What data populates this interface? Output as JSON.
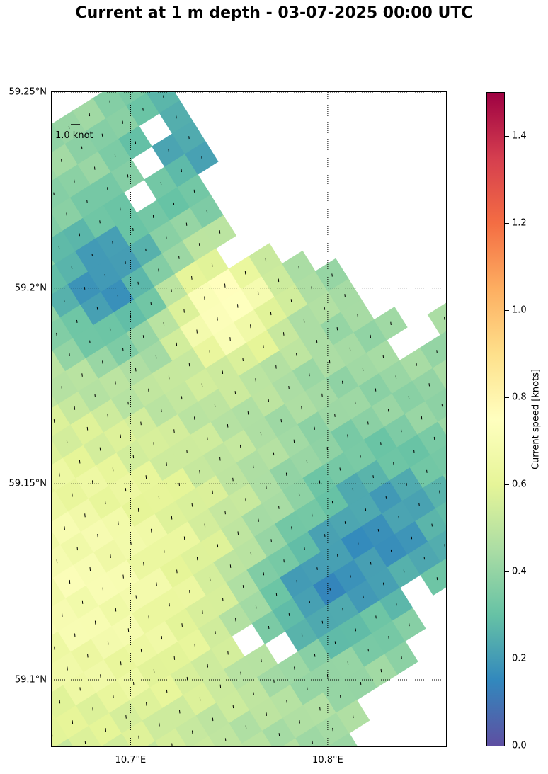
{
  "title": "Current at 1 m depth - 03-07-2025 00:00 UTC",
  "map": {
    "lat_labels": [
      {
        "text": "59.25°N",
        "lat": 59.25
      },
      {
        "text": "59.2°N",
        "lat": 59.2
      },
      {
        "text": "59.15°N",
        "lat": 59.15
      },
      {
        "text": "59.1°N",
        "lat": 59.1
      }
    ],
    "lon_labels": [
      {
        "text": "10.7°E",
        "lon": 10.7
      },
      {
        "text": "10.8°E",
        "lon": 10.8
      }
    ],
    "extent": {
      "lon_min": 10.66,
      "lon_max": 10.86,
      "lat_min": 59.083,
      "lat_max": 59.25
    },
    "gridlines": "dotted",
    "key_label": "1.0 knot"
  },
  "colorbar": {
    "label": "Current speed [knots]",
    "range": [
      0,
      1.5
    ],
    "ticks": [
      "0.0",
      "0.2",
      "0.4",
      "0.6",
      "0.8",
      "1.0",
      "1.2",
      "1.4"
    ],
    "tick_values": [
      0,
      0.2,
      0.4,
      0.6,
      0.8,
      1.0,
      1.2,
      1.4
    ],
    "colormap": "Spectral_r",
    "colors": [
      "#5e4fa2",
      "#3288bd",
      "#66c2a5",
      "#abdda4",
      "#e6f598",
      "#ffffbf",
      "#fee08b",
      "#fdae61",
      "#f46d43",
      "#d53e4f",
      "#9e0142"
    ]
  }
}
